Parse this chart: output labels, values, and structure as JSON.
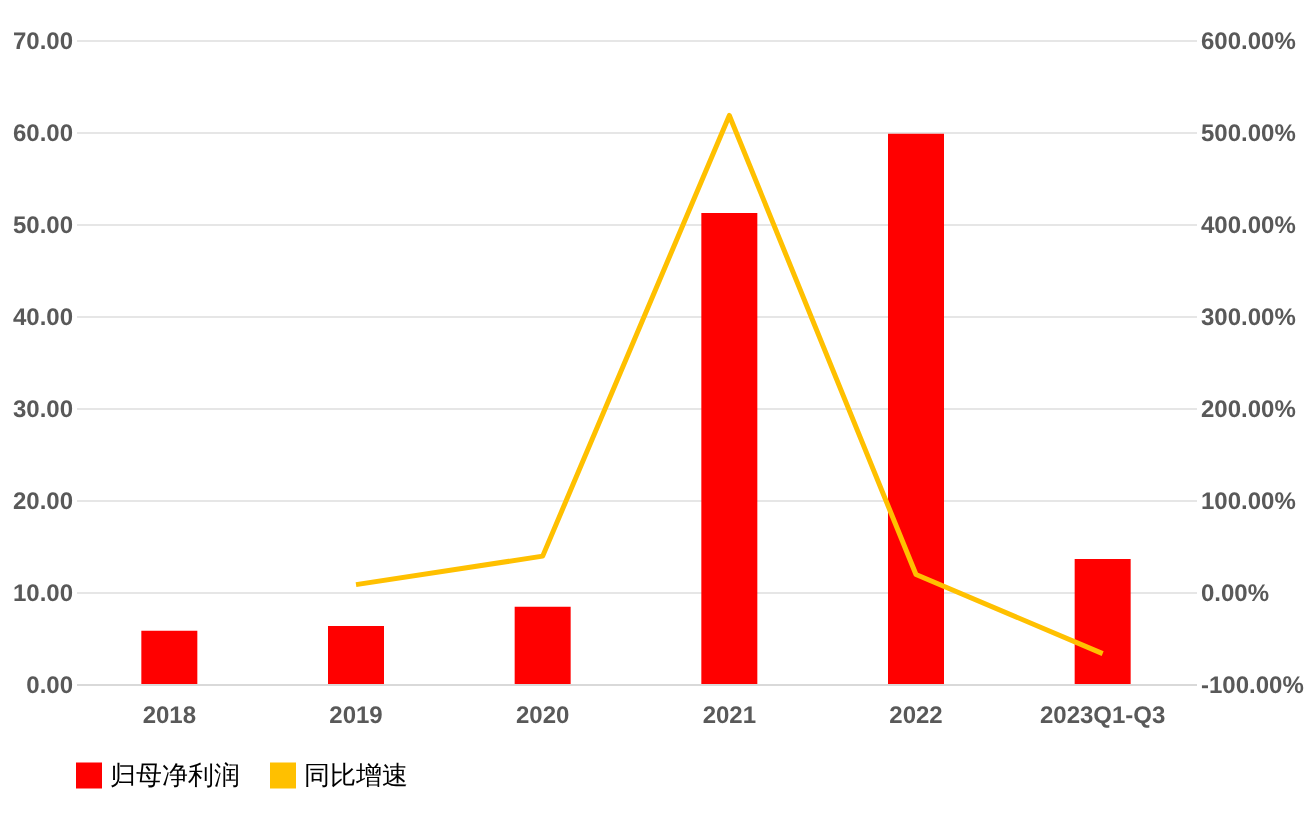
{
  "chart_data": {
    "type": "bar",
    "categories": [
      "2018",
      "2019",
      "2020",
      "2021",
      "2022",
      "2023Q1-Q3"
    ],
    "series": [
      {
        "name": "归母净利润",
        "color": "#ff0000",
        "values": [
          5.8,
          6.3,
          8.4,
          51.2,
          59.8,
          13.6
        ]
      },
      {
        "name": "同比增速",
        "type": "line",
        "axis": "y2",
        "color": "#ffc000",
        "values": [
          null,
          8,
          39,
          518,
          19,
          -67
        ]
      }
    ],
    "ylim": [
      0,
      70
    ],
    "yticks": [
      {
        "value": 0,
        "label": "0.00"
      },
      {
        "value": 10,
        "label": "10.00"
      },
      {
        "value": 20,
        "label": "20.00"
      },
      {
        "value": 30,
        "label": "30.00"
      },
      {
        "value": 40,
        "label": "40.00"
      },
      {
        "value": 50,
        "label": "50.00"
      },
      {
        "value": 60,
        "label": "60.00"
      },
      {
        "value": 70,
        "label": "70.00"
      }
    ],
    "y2lim": [
      -100,
      600
    ],
    "y2ticks": [
      {
        "value": -100,
        "label": "-100.00%"
      },
      {
        "value": 0,
        "label": "0.00%"
      },
      {
        "value": 100,
        "label": "100.00%"
      },
      {
        "value": 200,
        "label": "200.00%"
      },
      {
        "value": 300,
        "label": "300.00%"
      },
      {
        "value": 400,
        "label": "400.00%"
      },
      {
        "value": 500,
        "label": "500.00%"
      },
      {
        "value": 600,
        "label": "600.00%"
      }
    ],
    "grid": "y",
    "legend": "bottom",
    "marker": "none"
  }
}
